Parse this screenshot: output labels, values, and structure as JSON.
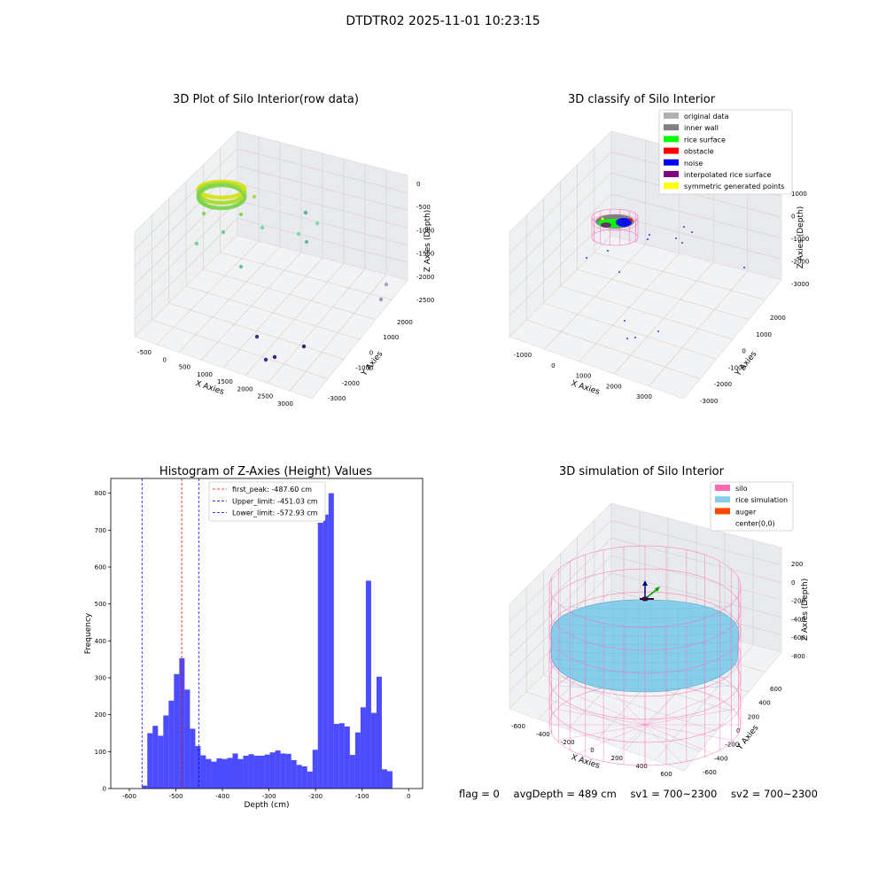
{
  "figure": {
    "suptitle": "DTDTR02 2025-11-01 10:23:15",
    "footer": {
      "flag": "flag = 0",
      "avg_depth": "avgDepth = 489 cm",
      "sv1": "sv1 = 700~2300",
      "sv2": "sv2 = 700~2300"
    }
  },
  "chart_data": [
    {
      "type": "scatter3d",
      "title": "3D Plot of Silo Interior(row data)",
      "xlabel": "X Axies",
      "ylabel": "Y Axies",
      "zlabel": "Z Axies (Depth)",
      "x_ticks": [
        "-500",
        "0",
        "500",
        "1000",
        "1500",
        "2000",
        "2500",
        "3000"
      ],
      "y_ticks": [
        "2000",
        "1000",
        "0",
        "-1000",
        "-2000",
        "-3000"
      ],
      "z_ticks": [
        "0",
        "-500",
        "-1000",
        "-1500",
        "-2000",
        "-2500"
      ],
      "xlim": [
        -600,
        3200
      ],
      "ylim": [
        -3100,
        2400
      ],
      "zlim": [
        -2700,
        100
      ],
      "grid": true,
      "colormap": "viridis by depth",
      "points": [
        {
          "x": 350,
          "y": 2050,
          "z": -920
        },
        {
          "x": 550,
          "y": 1750,
          "z": -980
        },
        {
          "x": 750,
          "y": 1500,
          "z": -1100
        },
        {
          "x": 1300,
          "y": 1600,
          "z": -640
        },
        {
          "x": 1600,
          "y": 1350,
          "z": -720
        },
        {
          "x": 1200,
          "y": 500,
          "z": -1250
        },
        {
          "x": 100,
          "y": 1800,
          "z": -1450
        },
        {
          "x": 1800,
          "y": 1400,
          "z": -1100
        },
        {
          "x": 3100,
          "y": -2050,
          "z": -1700
        },
        {
          "x": 3100,
          "y": -2500,
          "z": -1900
        },
        {
          "x": 1600,
          "y": -500,
          "z": -2350
        },
        {
          "x": 1900,
          "y": -1100,
          "z": -2300
        },
        {
          "x": 2700,
          "y": -1600,
          "z": -2350
        },
        {
          "x": 2200,
          "y": -900,
          "z": -2500
        }
      ]
    },
    {
      "type": "scatter3d",
      "title": "3D classify of Silo Interior",
      "xlabel": "X Axies",
      "ylabel": "Y Axies",
      "zlabel": "Z Axies (Depth)",
      "x_ticks": [
        "-1000",
        "0",
        "1000",
        "2000",
        "3000"
      ],
      "y_ticks": [
        "2000",
        "1000",
        "0",
        "-1000",
        "-2000",
        "-3000"
      ],
      "z_ticks": [
        "1000",
        "0",
        "-1000",
        "-2000",
        "-3000"
      ],
      "xlim": [
        -1300,
        3600
      ],
      "ylim": [
        -3100,
        2400
      ],
      "zlim": [
        -3300,
        1100
      ],
      "grid": true,
      "legend_position": "top-right",
      "legend": [
        {
          "label": "original data",
          "color": "#b0b0b0"
        },
        {
          "label": "inner wall",
          "color": "#808080"
        },
        {
          "label": "rice surface",
          "color": "#00ff00"
        },
        {
          "label": "obstacle",
          "color": "#ff0000"
        },
        {
          "label": "noise",
          "color": "#0000ff"
        },
        {
          "label": "interpolated rice surface",
          "color": "#800080"
        },
        {
          "label": "symmetric generated points",
          "color": "#ffff00"
        }
      ],
      "noise_points": [
        {
          "x": 3000,
          "y": 1400,
          "z": -600
        },
        {
          "x": 2700,
          "y": 1700,
          "z": -800
        },
        {
          "x": 2800,
          "y": 2000,
          "z": -1000
        },
        {
          "x": 3400,
          "y": -1500,
          "z": -1500
        },
        {
          "x": 0,
          "y": 1800,
          "z": -1550
        },
        {
          "x": -300,
          "y": 1500,
          "z": -1700
        },
        {
          "x": 600,
          "y": 900,
          "z": -2000
        },
        {
          "x": 1000,
          "y": -300,
          "z": -3100
        },
        {
          "x": 1300,
          "y": 0,
          "z": -3300
        },
        {
          "x": 1300,
          "y": -500,
          "z": -3350
        },
        {
          "x": 2200,
          "y": -400,
          "z": -3200
        }
      ]
    },
    {
      "type": "bar",
      "title": "Histogram of Z-Axies (Height) Values",
      "xlabel": "Depth (cm)",
      "ylabel": "Frequency",
      "xlim": [
        -640,
        30
      ],
      "ylim": [
        0,
        840
      ],
      "x_ticks": [
        -600,
        -500,
        -400,
        -300,
        -200,
        -100,
        0
      ],
      "y_ticks": [
        0,
        100,
        200,
        300,
        400,
        500,
        600,
        700,
        800
      ],
      "bar_color": "#0000ff",
      "bin_start": -572.9,
      "bin_width": 11.45,
      "values": [
        8,
        150,
        170,
        143,
        198,
        238,
        310,
        353,
        268,
        162,
        115,
        90,
        80,
        73,
        82,
        80,
        83,
        95,
        80,
        89,
        93,
        89,
        89,
        92,
        98,
        103,
        95,
        94,
        77,
        64,
        60,
        46,
        105,
        720,
        742,
        800,
        175,
        177,
        168,
        91,
        152,
        220,
        563,
        205,
        303,
        52,
        47
      ],
      "vlines": [
        {
          "label": "first_peak: -487.60 cm",
          "x": -487.6,
          "color": "#ff0000"
        },
        {
          "label": "Upper_limit: -451.03 cm",
          "x": -451.03,
          "color": "#0000ff"
        },
        {
          "label": "Lower_limit: -572.93 cm",
          "x": -572.93,
          "color": "#0000ff"
        }
      ],
      "legend_position": "upper center"
    },
    {
      "type": "surface3d",
      "title": "3D simulation of Silo Interior",
      "xlabel": "X Axies",
      "ylabel": "Y Axies",
      "zlabel": "Z Axies (Depth)",
      "x_ticks": [
        "-600",
        "-400",
        "-200",
        "0",
        "200",
        "400",
        "600"
      ],
      "y_ticks": [
        "600",
        "400",
        "200",
        "0",
        "-200",
        "-400",
        "-600"
      ],
      "z_ticks": [
        "200",
        "0",
        "-200",
        "-400",
        "-600",
        "-800"
      ],
      "xlim": [
        -650,
        650
      ],
      "ylim": [
        -650,
        650
      ],
      "zlim": [
        -1000,
        300
      ],
      "grid": true,
      "legend_position": "top-right",
      "legend": [
        {
          "label": "silo",
          "color": "#ff69b4"
        },
        {
          "label": "rice simulation",
          "color": "#87ceeb"
        },
        {
          "label": "auger",
          "color": "#ff4500"
        },
        {
          "label": "center(0,0)",
          "color": ""
        }
      ]
    }
  ]
}
